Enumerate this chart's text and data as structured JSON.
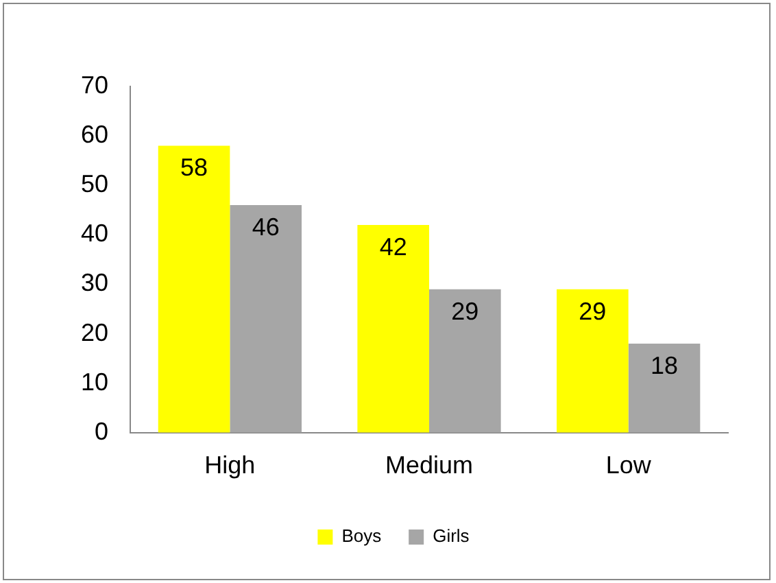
{
  "chart_data": {
    "type": "bar",
    "categories": [
      "High",
      "Medium",
      "Low"
    ],
    "series": [
      {
        "name": "Boys",
        "color": "#ffff00",
        "values": [
          58,
          42,
          29
        ]
      },
      {
        "name": "Girls",
        "color": "#a6a6a6",
        "values": [
          46,
          29,
          18
        ]
      }
    ],
    "ylim": [
      0,
      70
    ],
    "yticks": [
      0,
      10,
      20,
      30,
      40,
      50,
      60,
      70
    ],
    "grid": false,
    "legend": "bottom",
    "data_labels": true
  }
}
